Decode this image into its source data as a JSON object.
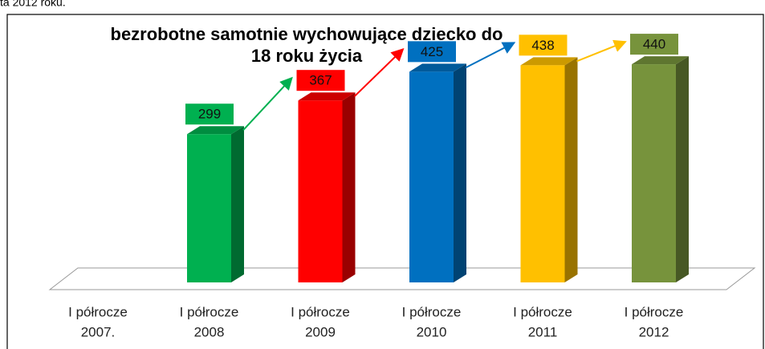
{
  "caption": "ta 2012 roku.",
  "chart_data": {
    "type": "bar3d",
    "title": [
      "bezrobotne samotnie wychowujące dziecko do",
      "18 roku życia"
    ],
    "categories": [
      [
        "I półrocze",
        "2007."
      ],
      [
        "I półrocze",
        "2008"
      ],
      [
        "I półrocze",
        "2009"
      ],
      [
        "I półrocze",
        "2010"
      ],
      [
        "I półrocze",
        "2011"
      ],
      [
        "I półrocze",
        "2012"
      ]
    ],
    "values": [
      null,
      299,
      367,
      425,
      438,
      440
    ],
    "colors": [
      "#00b050",
      "#00b050",
      "#ff0000",
      "#0070c0",
      "#ffc000",
      "#77933c"
    ]
  }
}
